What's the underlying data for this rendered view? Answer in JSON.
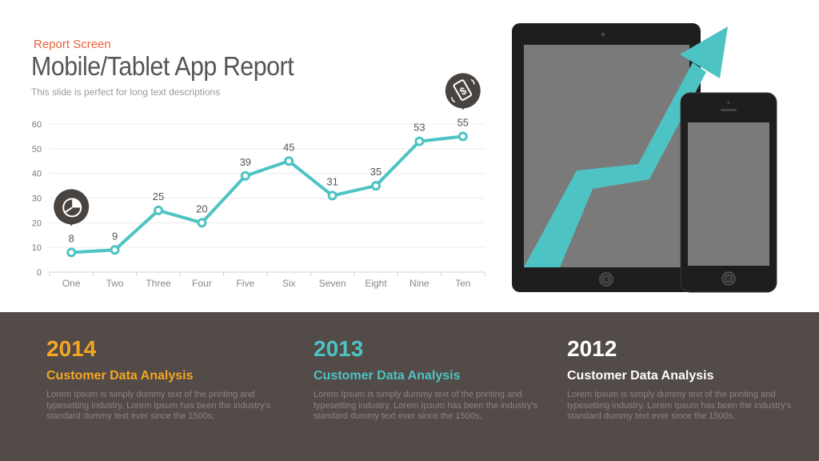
{
  "header": {
    "tag": "Report Screen",
    "title": "Mobile/Tablet App Report",
    "description": "This slide is perfect for long text descriptions"
  },
  "chart_data": {
    "type": "line",
    "categories": [
      "One",
      "Two",
      "Three",
      "Four",
      "Five",
      "Six",
      "Seven",
      "Eight",
      "Nine",
      "Ten"
    ],
    "series": [
      {
        "values": [
          8,
          9,
          25,
          20,
          39,
          45,
          31,
          35,
          53,
          55
        ],
        "color": "#4ec3c3"
      }
    ],
    "ylim": [
      0,
      60
    ],
    "yticks": [
      0,
      10,
      20,
      30,
      40,
      50,
      60
    ],
    "grid": true,
    "data_labels": true,
    "markers": [
      {
        "category": "One",
        "icon": "pie-chart-icon"
      },
      {
        "category": "Ten",
        "icon": "money-phone-icon"
      }
    ]
  },
  "illustration": {
    "devices": [
      "tablet",
      "phone"
    ],
    "arrow_color": "#4ec3c3",
    "arrow_icon": "trend-up-arrow"
  },
  "footer": {
    "columns": [
      {
        "year": "2014",
        "heading": "Customer Data Analysis",
        "body": "Lorem Ipsum is simply dummy text of the printing and typesetting industry. Lorem Ipsum has been the industry's standard dummy text ever since the 1500s,",
        "year_color": "#f5a623",
        "heading_color": "#f5a623"
      },
      {
        "year": "2013",
        "heading": "Customer Data Analysis",
        "body": "Lorem Ipsum is simply dummy text of the printing and typesetting industry. Lorem Ipsum has been the industry's standard dummy text ever since the 1500s,",
        "year_color": "#4ec3c3",
        "heading_color": "#4ec3c3"
      },
      {
        "year": "2012",
        "heading": "Customer Data Analysis",
        "body": "Lorem Ipsum is simply dummy text of the printing and typesetting industry. Lorem Ipsum has been the industry's standard dummy text ever since the 1500s,",
        "year_color": "#ffffff",
        "heading_color": "#ffffff"
      }
    ]
  },
  "colors": {
    "accent": "#4ec3c3",
    "title": "#555555",
    "tag": "#e8623a",
    "footer_bg": "#524b47"
  }
}
